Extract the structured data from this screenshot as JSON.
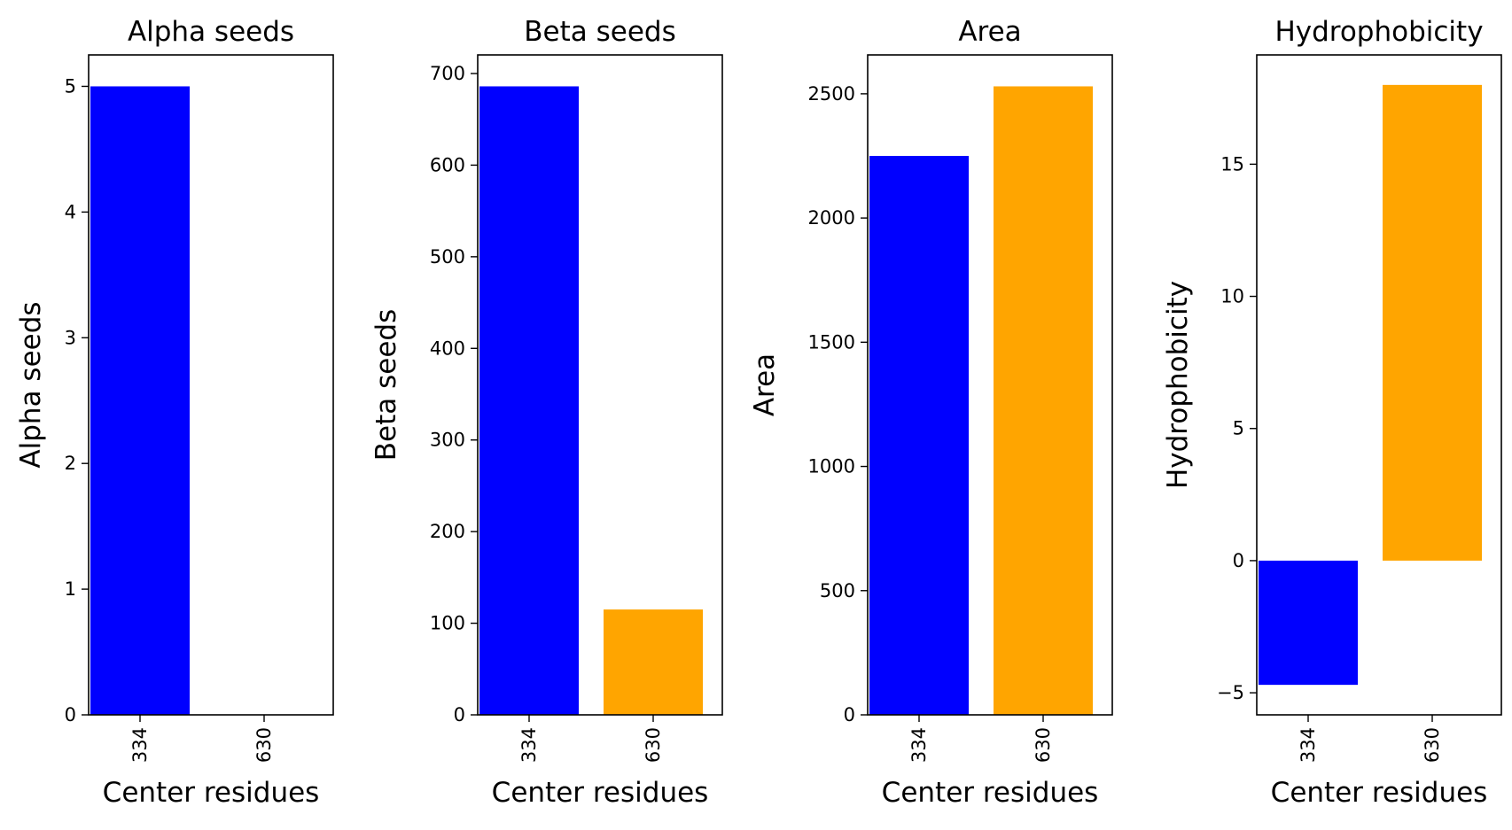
{
  "chart_data": [
    {
      "type": "bar",
      "title": "Alpha seeds",
      "xlabel": "Center residues",
      "ylabel": "Alpha seeds",
      "categories": [
        "334",
        "630"
      ],
      "values": [
        5,
        0
      ],
      "colors": [
        "#0000ff",
        "#ffa500"
      ],
      "ylim": [
        0,
        5.25
      ],
      "yticks": [
        0,
        1,
        2,
        3,
        4,
        5
      ],
      "ytick_labels": [
        "0",
        "1",
        "2",
        "3",
        "4",
        "5"
      ]
    },
    {
      "type": "bar",
      "title": "Beta seeds",
      "xlabel": "Center residues",
      "ylabel": "Beta seeds",
      "categories": [
        "334",
        "630"
      ],
      "values": [
        686,
        115
      ],
      "colors": [
        "#0000ff",
        "#ffa500"
      ],
      "ylim": [
        0,
        720.3
      ],
      "yticks": [
        0,
        100,
        200,
        300,
        400,
        500,
        600,
        700
      ],
      "ytick_labels": [
        "0",
        "100",
        "200",
        "300",
        "400",
        "500",
        "600",
        "700"
      ]
    },
    {
      "type": "bar",
      "title": "Area",
      "xlabel": "Center residues",
      "ylabel": "Area",
      "categories": [
        "334",
        "630"
      ],
      "values": [
        2250,
        2530
      ],
      "colors": [
        "#0000ff",
        "#ffa500"
      ],
      "ylim": [
        0,
        2656.5
      ],
      "yticks": [
        0,
        500,
        1000,
        1500,
        2000,
        2500
      ],
      "ytick_labels": [
        "0",
        "500",
        "1000",
        "1500",
        "2000",
        "2500"
      ]
    },
    {
      "type": "bar",
      "title": "Hydrophobicity",
      "xlabel": "Center residues",
      "ylabel": "Hydrophobicity",
      "categories": [
        "334",
        "630"
      ],
      "values": [
        -4.7,
        18
      ],
      "colors": [
        "#0000ff",
        "#ffa500"
      ],
      "ylim": [
        -5.835,
        19.135
      ],
      "yticks": [
        -5,
        0,
        5,
        10,
        15
      ],
      "ytick_labels": [
        "−5",
        "0",
        "5",
        "10",
        "15"
      ]
    }
  ]
}
